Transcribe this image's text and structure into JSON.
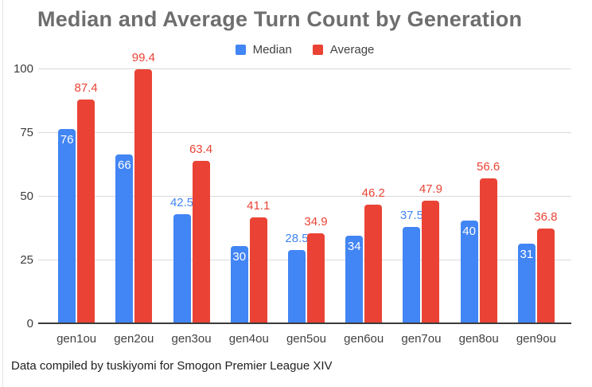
{
  "title": "Median and Average Turn Count by Generation",
  "footer_note": "Data compiled by tuskiyomi for Smogon Premier League XIV",
  "colors": {
    "median_blue": "#4285F4",
    "average_red": "#EA4335",
    "title_gray": "#6E6E6E",
    "axis_text": "#424242",
    "gridline": "#DADADA",
    "axis_line": "#3C3C3C",
    "inside_bar_label": "#FFFFFF",
    "background": "#FFFFFF"
  },
  "legend": {
    "items": [
      {
        "label": "Median",
        "color": "#4285F4"
      },
      {
        "label": "Average",
        "color": "#EA4335"
      }
    ]
  },
  "chart_data": {
    "type": "bar",
    "categories": [
      "gen1ou",
      "gen2ou",
      "gen3ou",
      "gen4ou",
      "gen5ou",
      "gen6ou",
      "gen7ou",
      "gen8ou",
      "gen9ou"
    ],
    "series": [
      {
        "name": "Median",
        "color": "#4285F4",
        "values": [
          76,
          66,
          42.5,
          30,
          28.5,
          34,
          37.5,
          40,
          31
        ]
      },
      {
        "name": "Average",
        "color": "#EA4335",
        "values": [
          87.4,
          99.4,
          63.4,
          41.1,
          34.9,
          46.2,
          47.9,
          56.6,
          36.8
        ]
      }
    ],
    "title": "Median and Average Turn Count by Generation",
    "xlabel": "",
    "ylabel": "",
    "yticks": [
      0,
      25,
      50,
      75,
      100
    ],
    "ylim": [
      0,
      100
    ],
    "grid": true,
    "legend_position": "top",
    "bar_label_style": "integer values shown in white inside bar top; decimal values shown above bar in series color"
  }
}
